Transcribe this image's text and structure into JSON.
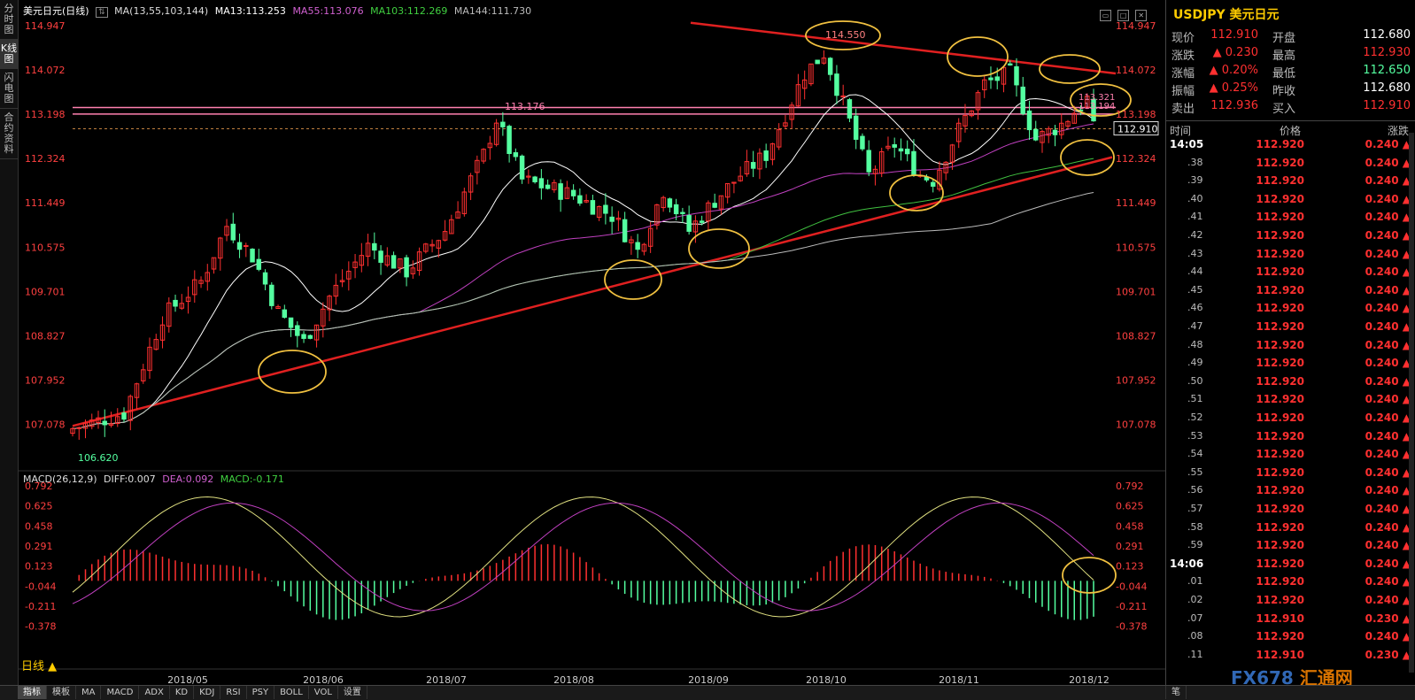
{
  "side_tabs": [
    "分时图",
    "K线图",
    "闪电图",
    "合约资料"
  ],
  "legend": {
    "title": "美元日元(日线)",
    "ma": "MA(13,55,103,144)",
    "ma13": "MA13:113.253",
    "ma55": "MA55:113.076",
    "ma103": "MA103:112.269",
    "ma144": "MA144:111.730"
  },
  "macd_legend": {
    "title": "MACD(26,12,9)",
    "diff": "DIFF:0.007",
    "dea": "DEA:0.092",
    "macd": "MACD:-0.171"
  },
  "colors": {
    "up": "#ff3030",
    "down": "#54ffa0",
    "ma13": "#ffffff",
    "ma55": "#c040c0",
    "ma103": "#40c040",
    "ma144": "#bbbbbb",
    "trend": "#e02020",
    "circle": "#f0c040",
    "resist": "#ff80b0"
  },
  "chart_data": {
    "type": "candlestick",
    "title": "美元日元(日线)",
    "y_ticks": [
      "114.947",
      "114.072",
      "113.198",
      "112.324",
      "111.449",
      "110.575",
      "109.701",
      "108.827",
      "107.952",
      "107.078"
    ],
    "y_range": [
      106.55,
      115.1
    ],
    "x_ticks": [
      "2018/05",
      "2018/06",
      "2018/07",
      "2018/08",
      "2018/09",
      "2018/10",
      "2018/11",
      "2018/12"
    ],
    "annotations": [
      "114.550",
      "113.176",
      "113.321",
      "113.194",
      "106.620"
    ],
    "current_price": "112.910",
    "macd_ticks": [
      "0.792",
      "0.625",
      "0.458",
      "0.291",
      "0.123",
      "-0.044",
      "-0.211",
      "-0.378"
    ],
    "macd_range": [
      -0.47,
      0.8
    ]
  },
  "period_label": "日线 ▲",
  "bottom_tabs": [
    "指标",
    "模板",
    "MA",
    "MACD",
    "ADX",
    "KD",
    "KDJ",
    "RSI",
    "PSY",
    "BOLL",
    "VOL",
    "设置"
  ],
  "bottom_right": "笔",
  "quote": {
    "symbol": "USDJPY 美元日元",
    "rows": [
      {
        "l1": "现价",
        "v1": "112.910",
        "l2": "开盘",
        "v2": "112.680",
        "c2": "#ffffff"
      },
      {
        "l1": "涨跌",
        "v1": "▲ 0.230",
        "l2": "最高",
        "v2": "112.930",
        "c2": "#ff3030"
      },
      {
        "l1": "涨幅",
        "v1": "▲ 0.20%",
        "l2": "最低",
        "v2": "112.650",
        "c2": "#54ffa0"
      },
      {
        "l1": "振幅",
        "v1": "▲ 0.25%",
        "l2": "昨收",
        "v2": "112.680",
        "c2": "#ffffff"
      },
      {
        "l1": "卖出",
        "v1": "112.936",
        "l2": "买入",
        "v2": "112.910",
        "c2": "#ff3030"
      }
    ]
  },
  "ticks_header": {
    "time": "时间",
    "price": "价格",
    "change": "涨跌"
  },
  "ticks": [
    {
      "t": "14:05",
      "p": "112.920",
      "c": "0.240 ▲"
    },
    {
      "t": ".38",
      "p": "112.920",
      "c": "0.240 ▲"
    },
    {
      "t": ".39",
      "p": "112.920",
      "c": "0.240 ▲"
    },
    {
      "t": ".40",
      "p": "112.920",
      "c": "0.240 ▲"
    },
    {
      "t": ".41",
      "p": "112.920",
      "c": "0.240 ▲"
    },
    {
      "t": ".42",
      "p": "112.920",
      "c": "0.240 ▲"
    },
    {
      "t": ".43",
      "p": "112.920",
      "c": "0.240 ▲"
    },
    {
      "t": ".44",
      "p": "112.920",
      "c": "0.240 ▲"
    },
    {
      "t": ".45",
      "p": "112.920",
      "c": "0.240 ▲"
    },
    {
      "t": ".46",
      "p": "112.920",
      "c": "0.240 ▲"
    },
    {
      "t": ".47",
      "p": "112.920",
      "c": "0.240 ▲"
    },
    {
      "t": ".48",
      "p": "112.920",
      "c": "0.240 ▲"
    },
    {
      "t": ".49",
      "p": "112.920",
      "c": "0.240 ▲"
    },
    {
      "t": ".50",
      "p": "112.920",
      "c": "0.240 ▲"
    },
    {
      "t": ".51",
      "p": "112.920",
      "c": "0.240 ▲"
    },
    {
      "t": ".52",
      "p": "112.920",
      "c": "0.240 ▲"
    },
    {
      "t": ".53",
      "p": "112.920",
      "c": "0.240 ▲"
    },
    {
      "t": ".54",
      "p": "112.920",
      "c": "0.240 ▲"
    },
    {
      "t": ".55",
      "p": "112.920",
      "c": "0.240 ▲"
    },
    {
      "t": ".56",
      "p": "112.920",
      "c": "0.240 ▲"
    },
    {
      "t": ".57",
      "p": "112.920",
      "c": "0.240 ▲"
    },
    {
      "t": ".58",
      "p": "112.920",
      "c": "0.240 ▲"
    },
    {
      "t": ".59",
      "p": "112.920",
      "c": "0.240 ▲"
    },
    {
      "t": "14:06",
      "p": "112.920",
      "c": "0.240 ▲"
    },
    {
      "t": ".01",
      "p": "112.920",
      "c": "0.240 ▲"
    },
    {
      "t": ".02",
      "p": "112.920",
      "c": "0.240 ▲"
    },
    {
      "t": ".07",
      "p": "112.910",
      "c": "0.230 ▲"
    },
    {
      "t": ".08",
      "p": "112.920",
      "c": "0.240 ▲"
    },
    {
      "t": ".11",
      "p": "112.910",
      "c": "0.230 ▲"
    }
  ],
  "watermark": {
    "brand": "FX678",
    "cn": "汇通网"
  }
}
